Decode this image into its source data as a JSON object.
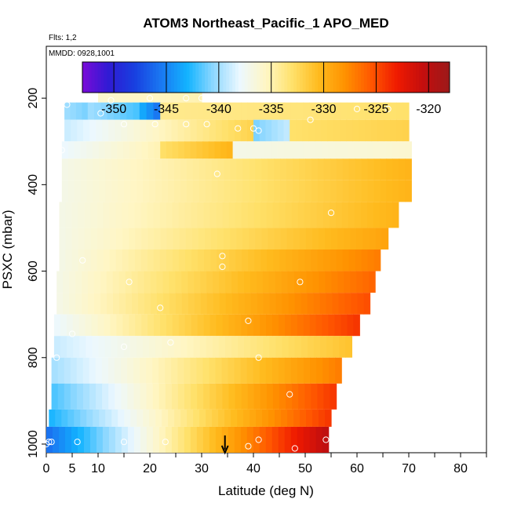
{
  "chart_data": {
    "type": "heatmap",
    "title": "ATOM3 Northeast_Pacific_1 APO_MED",
    "flights_label": "Flts: 1,2",
    "dates_label": "MMDD: 0928,1001",
    "xlabel": "Latitude (deg N)",
    "ylabel": "PSXC (mbar)",
    "xlim": [
      0,
      85
    ],
    "ylim": [
      1020,
      80
    ],
    "x_ticks": [
      0,
      5,
      10,
      20,
      30,
      40,
      50,
      60,
      70,
      80
    ],
    "x_minor_ticks": [
      15,
      25,
      35,
      45,
      55,
      65,
      75,
      85
    ],
    "y_ticks": [
      200,
      400,
      600,
      800,
      1000
    ],
    "colorbar": {
      "min": -353,
      "max": -318,
      "ticks": [
        -350,
        -345,
        -340,
        -335,
        -330,
        -325,
        -320
      ],
      "tick_labels": [
        "-350",
        "-345",
        "-340",
        "-335",
        "-330",
        "-325",
        "-320"
      ],
      "colors": [
        "#7a0bd8",
        "#2f1bd4",
        "#1840e0",
        "#1a78f2",
        "#12b3ff",
        "#8fd8ff",
        "#ecf8ff",
        "#fff6c4",
        "#ffe16b",
        "#ffbb1e",
        "#ff9200",
        "#ff5800",
        "#ef1a00",
        "#c30e0e",
        "#9c1a1a"
      ]
    },
    "layers": [
      {
        "p_top": 175,
        "p_bot": 210,
        "segments": [
          {
            "lat": [
              10,
              30
            ],
            "values": [
              -336,
              -335
            ]
          }
        ]
      },
      {
        "p_top": 210,
        "p_bot": 250,
        "segments": [
          {
            "lat": [
              3.5,
              8
            ],
            "values": [
              -340,
              -341
            ]
          },
          {
            "lat": [
              8,
              18
            ],
            "values": [
              -340,
              -342
            ]
          },
          {
            "lat": [
              18,
              22
            ],
            "values": [
              -343,
              -346
            ]
          },
          {
            "lat": [
              22,
              70
            ],
            "values": [
              -334,
              -333
            ]
          }
        ]
      },
      {
        "p_top": 250,
        "p_bot": 300,
        "segments": [
          {
            "lat": [
              3.5,
              40
            ],
            "values": [
              -339,
              -332
            ]
          },
          {
            "lat": [
              40,
              47
            ],
            "values": [
              -341,
              -339
            ]
          },
          {
            "lat": [
              47,
              70
            ],
            "values": [
              -333,
              -332
            ]
          }
        ]
      },
      {
        "p_top": 300,
        "p_bot": 340,
        "segments": [
          {
            "lat": [
              3,
              22
            ],
            "values": [
              -338,
              -335
            ]
          },
          {
            "lat": [
              22,
              36
            ],
            "values": [
              -333,
              -330
            ]
          },
          {
            "lat": [
              36,
              70.5
            ],
            "values": [
              -337,
              -336
            ]
          }
        ]
      },
      {
        "p_top": 340,
        "p_bot": 390,
        "segments": [
          {
            "lat": [
              3,
              70.5
            ],
            "values": [
              -337,
              -330
            ]
          }
        ]
      },
      {
        "p_top": 390,
        "p_bot": 440,
        "segments": [
          {
            "lat": [
              3,
              70.5
            ],
            "values": [
              -337,
              -330
            ]
          }
        ]
      },
      {
        "p_top": 440,
        "p_bot": 500,
        "segments": [
          {
            "lat": [
              2.5,
              68
            ],
            "values": [
              -337,
              -330
            ]
          }
        ]
      },
      {
        "p_top": 500,
        "p_bot": 550,
        "segments": [
          {
            "lat": [
              2.5,
              66
            ],
            "values": [
              -337,
              -329
            ]
          }
        ]
      },
      {
        "p_top": 550,
        "p_bot": 600,
        "segments": [
          {
            "lat": [
              2.5,
              64.5
            ],
            "values": [
              -337,
              -327
            ]
          }
        ]
      },
      {
        "p_top": 600,
        "p_bot": 650,
        "segments": [
          {
            "lat": [
              2,
              63.5
            ],
            "values": [
              -337,
              -326
            ]
          }
        ]
      },
      {
        "p_top": 650,
        "p_bot": 700,
        "segments": [
          {
            "lat": [
              2,
              62.5
            ],
            "values": [
              -337,
              -325
            ]
          }
        ]
      },
      {
        "p_top": 700,
        "p_bot": 750,
        "segments": [
          {
            "lat": [
              1.5,
              60.5
            ],
            "values": [
              -338,
              -324
            ]
          }
        ]
      },
      {
        "p_top": 750,
        "p_bot": 800,
        "segments": [
          {
            "lat": [
              1.5,
              59
            ],
            "values": [
              -339,
              -331
            ]
          }
        ]
      },
      {
        "p_top": 800,
        "p_bot": 860,
        "segments": [
          {
            "lat": [
              1,
              57
            ],
            "values": [
              -340,
              -327
            ]
          }
        ]
      },
      {
        "p_top": 860,
        "p_bot": 920,
        "segments": [
          {
            "lat": [
              1,
              56
            ],
            "values": [
              -342,
              -324
            ]
          }
        ]
      },
      {
        "p_top": 920,
        "p_bot": 960,
        "segments": [
          {
            "lat": [
              0.5,
              55
            ],
            "values": [
              -343,
              -324
            ]
          }
        ]
      },
      {
        "p_top": 960,
        "p_bot": 1020,
        "segments": [
          {
            "lat": [
              0,
              54.5
            ],
            "values": [
              -346,
              -320
            ]
          }
        ]
      }
    ],
    "flight_points": [
      {
        "lat": 4,
        "p": 215
      },
      {
        "lat": 10.5,
        "p": 235
      },
      {
        "lat": 12.5,
        "p": 205
      },
      {
        "lat": 20,
        "p": 200
      },
      {
        "lat": 27,
        "p": 200
      },
      {
        "lat": 30,
        "p": 200
      },
      {
        "lat": 15,
        "p": 260
      },
      {
        "lat": 21,
        "p": 260
      },
      {
        "lat": 27,
        "p": 260
      },
      {
        "lat": 31,
        "p": 260
      },
      {
        "lat": 37,
        "p": 270
      },
      {
        "lat": 40,
        "p": 270
      },
      {
        "lat": 41,
        "p": 275
      },
      {
        "lat": 51,
        "p": 250
      },
      {
        "lat": 60,
        "p": 225
      },
      {
        "lat": 66,
        "p": 225
      },
      {
        "lat": 3,
        "p": 320
      },
      {
        "lat": 33,
        "p": 375
      },
      {
        "lat": 55,
        "p": 465
      },
      {
        "lat": 7,
        "p": 575
      },
      {
        "lat": 34,
        "p": 565
      },
      {
        "lat": 34,
        "p": 590
      },
      {
        "lat": 16,
        "p": 625
      },
      {
        "lat": 49,
        "p": 625
      },
      {
        "lat": 22,
        "p": 685
      },
      {
        "lat": 39,
        "p": 715
      },
      {
        "lat": 5,
        "p": 745
      },
      {
        "lat": 24,
        "p": 765
      },
      {
        "lat": 15,
        "p": 775
      },
      {
        "lat": 2,
        "p": 800
      },
      {
        "lat": 41,
        "p": 800
      },
      {
        "lat": 47,
        "p": 885
      },
      {
        "lat": 0.5,
        "p": 995
      },
      {
        "lat": 1,
        "p": 995
      },
      {
        "lat": 6,
        "p": 995
      },
      {
        "lat": 15,
        "p": 995
      },
      {
        "lat": 23,
        "p": 995
      },
      {
        "lat": 39,
        "p": 1005
      },
      {
        "lat": 41,
        "p": 990
      },
      {
        "lat": 48,
        "p": 1010
      },
      {
        "lat": 54,
        "p": 990
      },
      {
        "lat": 0,
        "p": 1000
      }
    ],
    "marker": {
      "lat": 34.5,
      "p": 1020
    }
  }
}
